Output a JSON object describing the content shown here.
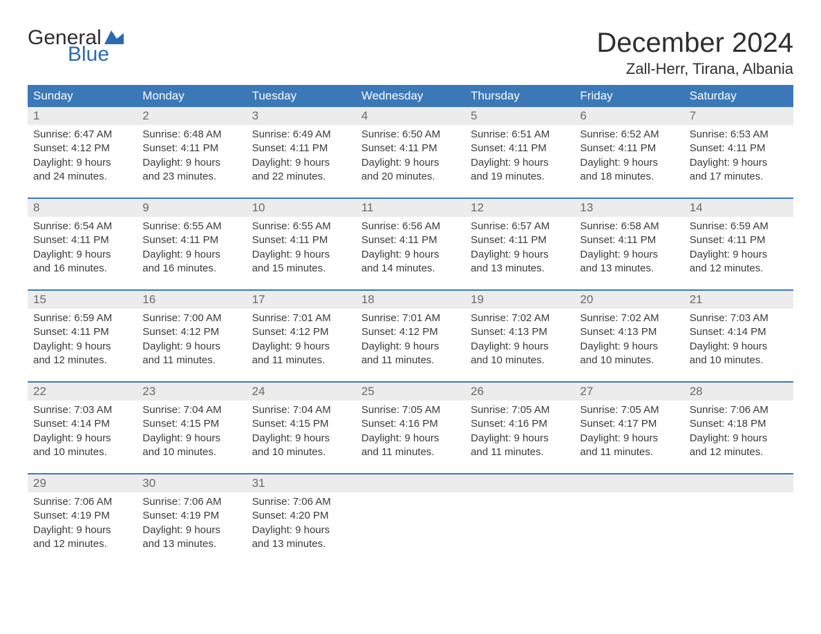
{
  "brand": {
    "general": "General",
    "blue": "Blue"
  },
  "title": "December 2024",
  "location": "Zall-Herr, Tirana, Albania",
  "colors": {
    "header_bg": "#3b78b8",
    "header_text": "#ffffff",
    "rule": "#3b78b8",
    "daynum_bg": "#ececec",
    "daynum_text": "#6a6a6a",
    "body_text": "#3a3a3a",
    "title_text": "#2f2f2f",
    "logo_blue": "#2a6bb0"
  },
  "weekdays": [
    "Sunday",
    "Monday",
    "Tuesday",
    "Wednesday",
    "Thursday",
    "Friday",
    "Saturday"
  ],
  "weeks": [
    [
      {
        "n": "1",
        "sr": "Sunrise: 6:47 AM",
        "ss": "Sunset: 4:12 PM",
        "d1": "Daylight: 9 hours",
        "d2": "and 24 minutes."
      },
      {
        "n": "2",
        "sr": "Sunrise: 6:48 AM",
        "ss": "Sunset: 4:11 PM",
        "d1": "Daylight: 9 hours",
        "d2": "and 23 minutes."
      },
      {
        "n": "3",
        "sr": "Sunrise: 6:49 AM",
        "ss": "Sunset: 4:11 PM",
        "d1": "Daylight: 9 hours",
        "d2": "and 22 minutes."
      },
      {
        "n": "4",
        "sr": "Sunrise: 6:50 AM",
        "ss": "Sunset: 4:11 PM",
        "d1": "Daylight: 9 hours",
        "d2": "and 20 minutes."
      },
      {
        "n": "5",
        "sr": "Sunrise: 6:51 AM",
        "ss": "Sunset: 4:11 PM",
        "d1": "Daylight: 9 hours",
        "d2": "and 19 minutes."
      },
      {
        "n": "6",
        "sr": "Sunrise: 6:52 AM",
        "ss": "Sunset: 4:11 PM",
        "d1": "Daylight: 9 hours",
        "d2": "and 18 minutes."
      },
      {
        "n": "7",
        "sr": "Sunrise: 6:53 AM",
        "ss": "Sunset: 4:11 PM",
        "d1": "Daylight: 9 hours",
        "d2": "and 17 minutes."
      }
    ],
    [
      {
        "n": "8",
        "sr": "Sunrise: 6:54 AM",
        "ss": "Sunset: 4:11 PM",
        "d1": "Daylight: 9 hours",
        "d2": "and 16 minutes."
      },
      {
        "n": "9",
        "sr": "Sunrise: 6:55 AM",
        "ss": "Sunset: 4:11 PM",
        "d1": "Daylight: 9 hours",
        "d2": "and 16 minutes."
      },
      {
        "n": "10",
        "sr": "Sunrise: 6:55 AM",
        "ss": "Sunset: 4:11 PM",
        "d1": "Daylight: 9 hours",
        "d2": "and 15 minutes."
      },
      {
        "n": "11",
        "sr": "Sunrise: 6:56 AM",
        "ss": "Sunset: 4:11 PM",
        "d1": "Daylight: 9 hours",
        "d2": "and 14 minutes."
      },
      {
        "n": "12",
        "sr": "Sunrise: 6:57 AM",
        "ss": "Sunset: 4:11 PM",
        "d1": "Daylight: 9 hours",
        "d2": "and 13 minutes."
      },
      {
        "n": "13",
        "sr": "Sunrise: 6:58 AM",
        "ss": "Sunset: 4:11 PM",
        "d1": "Daylight: 9 hours",
        "d2": "and 13 minutes."
      },
      {
        "n": "14",
        "sr": "Sunrise: 6:59 AM",
        "ss": "Sunset: 4:11 PM",
        "d1": "Daylight: 9 hours",
        "d2": "and 12 minutes."
      }
    ],
    [
      {
        "n": "15",
        "sr": "Sunrise: 6:59 AM",
        "ss": "Sunset: 4:11 PM",
        "d1": "Daylight: 9 hours",
        "d2": "and 12 minutes."
      },
      {
        "n": "16",
        "sr": "Sunrise: 7:00 AM",
        "ss": "Sunset: 4:12 PM",
        "d1": "Daylight: 9 hours",
        "d2": "and 11 minutes."
      },
      {
        "n": "17",
        "sr": "Sunrise: 7:01 AM",
        "ss": "Sunset: 4:12 PM",
        "d1": "Daylight: 9 hours",
        "d2": "and 11 minutes."
      },
      {
        "n": "18",
        "sr": "Sunrise: 7:01 AM",
        "ss": "Sunset: 4:12 PM",
        "d1": "Daylight: 9 hours",
        "d2": "and 11 minutes."
      },
      {
        "n": "19",
        "sr": "Sunrise: 7:02 AM",
        "ss": "Sunset: 4:13 PM",
        "d1": "Daylight: 9 hours",
        "d2": "and 10 minutes."
      },
      {
        "n": "20",
        "sr": "Sunrise: 7:02 AM",
        "ss": "Sunset: 4:13 PM",
        "d1": "Daylight: 9 hours",
        "d2": "and 10 minutes."
      },
      {
        "n": "21",
        "sr": "Sunrise: 7:03 AM",
        "ss": "Sunset: 4:14 PM",
        "d1": "Daylight: 9 hours",
        "d2": "and 10 minutes."
      }
    ],
    [
      {
        "n": "22",
        "sr": "Sunrise: 7:03 AM",
        "ss": "Sunset: 4:14 PM",
        "d1": "Daylight: 9 hours",
        "d2": "and 10 minutes."
      },
      {
        "n": "23",
        "sr": "Sunrise: 7:04 AM",
        "ss": "Sunset: 4:15 PM",
        "d1": "Daylight: 9 hours",
        "d2": "and 10 minutes."
      },
      {
        "n": "24",
        "sr": "Sunrise: 7:04 AM",
        "ss": "Sunset: 4:15 PM",
        "d1": "Daylight: 9 hours",
        "d2": "and 10 minutes."
      },
      {
        "n": "25",
        "sr": "Sunrise: 7:05 AM",
        "ss": "Sunset: 4:16 PM",
        "d1": "Daylight: 9 hours",
        "d2": "and 11 minutes."
      },
      {
        "n": "26",
        "sr": "Sunrise: 7:05 AM",
        "ss": "Sunset: 4:16 PM",
        "d1": "Daylight: 9 hours",
        "d2": "and 11 minutes."
      },
      {
        "n": "27",
        "sr": "Sunrise: 7:05 AM",
        "ss": "Sunset: 4:17 PM",
        "d1": "Daylight: 9 hours",
        "d2": "and 11 minutes."
      },
      {
        "n": "28",
        "sr": "Sunrise: 7:06 AM",
        "ss": "Sunset: 4:18 PM",
        "d1": "Daylight: 9 hours",
        "d2": "and 12 minutes."
      }
    ],
    [
      {
        "n": "29",
        "sr": "Sunrise: 7:06 AM",
        "ss": "Sunset: 4:19 PM",
        "d1": "Daylight: 9 hours",
        "d2": "and 12 minutes."
      },
      {
        "n": "30",
        "sr": "Sunrise: 7:06 AM",
        "ss": "Sunset: 4:19 PM",
        "d1": "Daylight: 9 hours",
        "d2": "and 13 minutes."
      },
      {
        "n": "31",
        "sr": "Sunrise: 7:06 AM",
        "ss": "Sunset: 4:20 PM",
        "d1": "Daylight: 9 hours",
        "d2": "and 13 minutes."
      },
      {
        "n": "",
        "sr": "",
        "ss": "",
        "d1": "",
        "d2": ""
      },
      {
        "n": "",
        "sr": "",
        "ss": "",
        "d1": "",
        "d2": ""
      },
      {
        "n": "",
        "sr": "",
        "ss": "",
        "d1": "",
        "d2": ""
      },
      {
        "n": "",
        "sr": "",
        "ss": "",
        "d1": "",
        "d2": ""
      }
    ]
  ]
}
